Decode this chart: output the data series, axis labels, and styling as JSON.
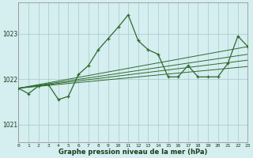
{
  "hours": [
    0,
    1,
    2,
    3,
    4,
    5,
    6,
    7,
    8,
    9,
    10,
    11,
    12,
    13,
    14,
    15,
    16,
    17,
    18,
    19,
    20,
    21,
    22,
    23
  ],
  "pressure": [
    1021.8,
    1021.68,
    1021.85,
    1021.88,
    1021.55,
    1021.62,
    1022.1,
    1022.3,
    1022.65,
    1022.9,
    1023.15,
    1023.42,
    1022.85,
    1022.65,
    1022.55,
    1022.05,
    1022.05,
    1022.3,
    1022.05,
    1022.05,
    1022.05,
    1022.35,
    1022.95,
    1022.72
  ],
  "line_color": "#2d6a2d",
  "bg_color": "#d5eef0",
  "grid_color": "#a8c8cc",
  "ylabel_ticks": [
    1021,
    1022,
    1023
  ],
  "xlabel_ticks": [
    0,
    1,
    2,
    3,
    4,
    5,
    6,
    7,
    8,
    9,
    10,
    11,
    12,
    13,
    14,
    15,
    16,
    17,
    18,
    19,
    20,
    21,
    22,
    23
  ],
  "xlabel_label": "Graphe pression niveau de la mer (hPa)",
  "ylim": [
    1020.6,
    1023.7
  ],
  "xlim": [
    0,
    23
  ],
  "trend_lines": [
    {
      "x0": 0,
      "x1": 23,
      "y0": 1021.8,
      "y1": 1022.72
    },
    {
      "x0": 0,
      "x1": 23,
      "y0": 1021.8,
      "y1": 1022.55
    },
    {
      "x0": 0,
      "x1": 23,
      "y0": 1021.8,
      "y1": 1022.42
    },
    {
      "x0": 0,
      "x1": 23,
      "y0": 1021.8,
      "y1": 1022.28
    }
  ]
}
